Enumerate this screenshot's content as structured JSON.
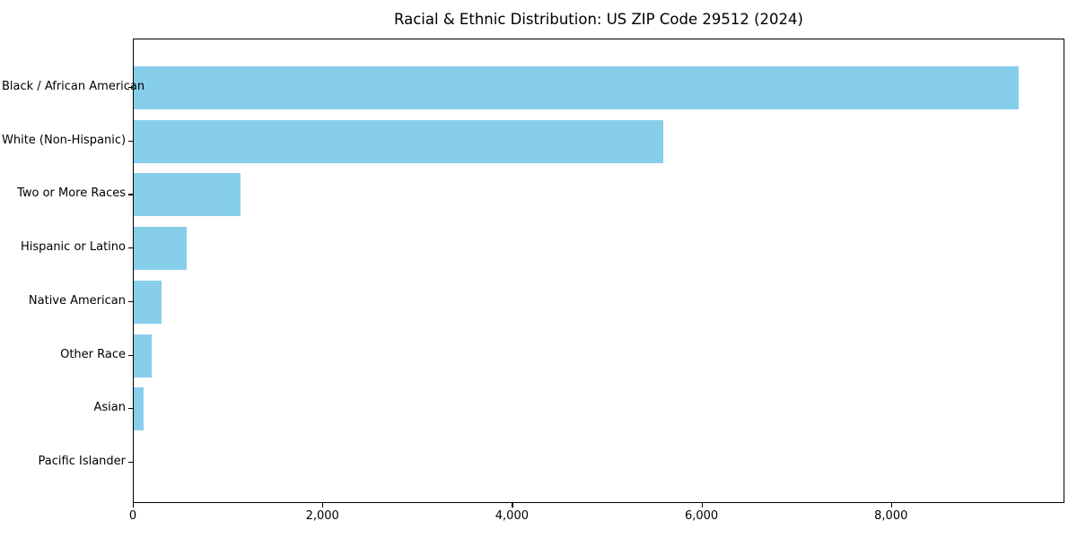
{
  "chart_data": {
    "type": "bar",
    "orientation": "horizontal",
    "title": "Racial & Ethnic Distribution: US ZIP Code 29512 (2024)",
    "categories": [
      "Black / African American",
      "White (Non-Hispanic)",
      "Two or More Races",
      "Hispanic or Latino",
      "Native American",
      "Other Race",
      "Asian",
      "Pacific Islander"
    ],
    "values": [
      9360,
      5600,
      1130,
      560,
      295,
      190,
      105,
      0
    ],
    "xlabel": "",
    "ylabel": "",
    "xlim": [
      0,
      9830
    ],
    "x_ticks": [
      0,
      2000,
      4000,
      6000,
      8000
    ],
    "x_tick_labels": [
      "0",
      "2,000",
      "4,000",
      "6,000",
      "8,000"
    ],
    "bar_color": "#87CEEB",
    "spine_color": "#000000",
    "background": "#ffffff",
    "grid": false,
    "legend": "none"
  }
}
